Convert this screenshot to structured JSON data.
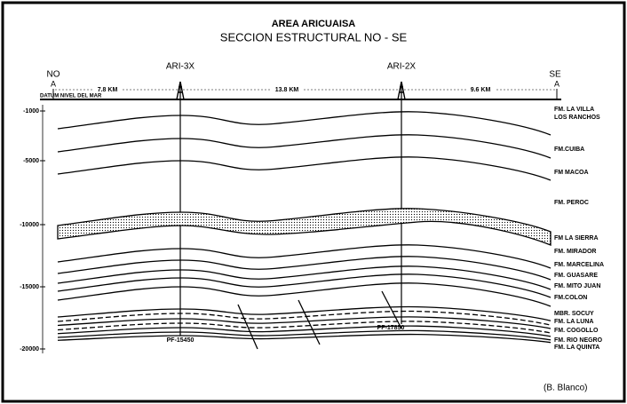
{
  "header": {
    "title": "AREA ARICUAISA",
    "subtitle": "SECCION ESTRUCTURAL NO - SE"
  },
  "endpoints": [
    {
      "direction": "NO",
      "label": "A"
    },
    {
      "direction": "SE",
      "label": "A"
    }
  ],
  "wells": [
    {
      "name": "ARI-3X",
      "total_depth": "PF-15450"
    },
    {
      "name": "ARI-2X",
      "total_depth": "PF-17850"
    }
  ],
  "distances": [
    "7.8 KM",
    "13.8 KM",
    "9.6 KM"
  ],
  "datum": "DATUM NIVEL DEL MAR",
  "depth_axis": [
    "-1000",
    "-5000",
    "-10000",
    "-15000",
    "-20000"
  ],
  "formations": [
    "FM. LA VILLA",
    "LOS RANCHOS",
    "FM.CUIBA",
    "FM MACOA",
    "FM. PEROC",
    "FM LA SIERRA",
    "FM. MIRADOR",
    "FM. MARCELINA",
    "FM. GUASARE",
    "FM. MITO JUAN",
    "FM.COLON",
    "MBR. SOCUY",
    "FM. LA LUNA",
    "FM. COGOLLO",
    "FM. RIO NEGRO",
    "FM. LA QUINTA"
  ],
  "credit": "(B. Blanco)"
}
